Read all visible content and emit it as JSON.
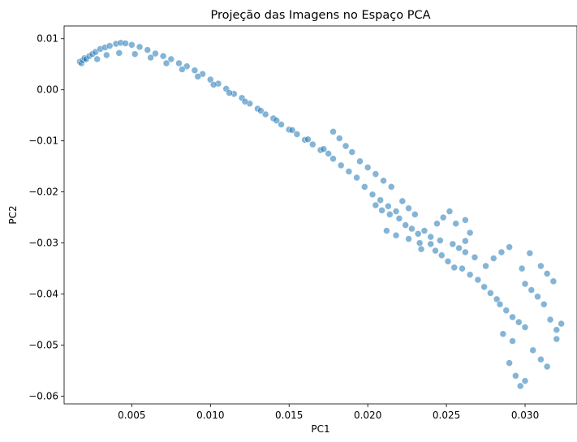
{
  "chart_data": {
    "type": "scatter",
    "title": "Projeção das Imagens no Espaço PCA",
    "xlabel": "PC1",
    "ylabel": "PC2",
    "xlim": [
      0.0007,
      0.0333
    ],
    "ylim": [
      -0.0615,
      0.0125
    ],
    "xticks": [
      0.005,
      0.01,
      0.015,
      0.02,
      0.025,
      0.03
    ],
    "xtick_labels": [
      "0.005",
      "0.010",
      "0.015",
      "0.020",
      "0.025",
      "0.030"
    ],
    "yticks": [
      0.01,
      0.0,
      -0.01,
      -0.02,
      -0.03,
      -0.04,
      -0.05,
      -0.06
    ],
    "ytick_labels": [
      "0.01",
      "0.00",
      "−0.01",
      "−0.02",
      "−0.03",
      "−0.04",
      "−0.05",
      "−0.06"
    ],
    "grid": false,
    "color": "#1f77b4",
    "points": [
      [
        0.0017,
        0.0055
      ],
      [
        0.0018,
        0.0052
      ],
      [
        0.0019,
        0.0058
      ],
      [
        0.002,
        0.0062
      ],
      [
        0.0021,
        0.006
      ],
      [
        0.0023,
        0.0066
      ],
      [
        0.0025,
        0.007
      ],
      [
        0.0027,
        0.0074
      ],
      [
        0.003,
        0.008
      ],
      [
        0.0033,
        0.0083
      ],
      [
        0.0036,
        0.0086
      ],
      [
        0.004,
        0.009
      ],
      [
        0.0043,
        0.0092
      ],
      [
        0.0046,
        0.0091
      ],
      [
        0.005,
        0.0088
      ],
      [
        0.0055,
        0.0084
      ],
      [
        0.006,
        0.0078
      ],
      [
        0.0065,
        0.0071
      ],
      [
        0.007,
        0.0066
      ],
      [
        0.0075,
        0.006
      ],
      [
        0.008,
        0.0052
      ],
      [
        0.0085,
        0.0046
      ],
      [
        0.009,
        0.0038
      ],
      [
        0.0095,
        0.0031
      ],
      [
        0.01,
        0.002
      ],
      [
        0.0105,
        0.0012
      ],
      [
        0.011,
        0.0002
      ],
      [
        0.0115,
        -0.0008
      ],
      [
        0.012,
        -0.0016
      ],
      [
        0.0125,
        -0.0027
      ],
      [
        0.013,
        -0.0037
      ],
      [
        0.0135,
        -0.0048
      ],
      [
        0.014,
        -0.0056
      ],
      [
        0.0145,
        -0.0068
      ],
      [
        0.015,
        -0.0078
      ],
      [
        0.0155,
        -0.0087
      ],
      [
        0.016,
        -0.0098
      ],
      [
        0.0165,
        -0.0107
      ],
      [
        0.017,
        -0.0118
      ],
      [
        0.0175,
        -0.0125
      ],
      [
        0.0028,
        0.006
      ],
      [
        0.0034,
        0.0068
      ],
      [
        0.0042,
        0.0072
      ],
      [
        0.0052,
        0.007
      ],
      [
        0.0062,
        0.0063
      ],
      [
        0.0072,
        0.0052
      ],
      [
        0.0082,
        0.004
      ],
      [
        0.0092,
        0.0026
      ],
      [
        0.0102,
        0.001
      ],
      [
        0.0112,
        -0.0006
      ],
      [
        0.0122,
        -0.0023
      ],
      [
        0.0132,
        -0.0041
      ],
      [
        0.0142,
        -0.006
      ],
      [
        0.0152,
        -0.0079
      ],
      [
        0.0162,
        -0.0097
      ],
      [
        0.0172,
        -0.0116
      ],
      [
        0.0178,
        -0.0135
      ],
      [
        0.0183,
        -0.0148
      ],
      [
        0.0188,
        -0.016
      ],
      [
        0.0193,
        -0.0172
      ],
      [
        0.0178,
        -0.0082
      ],
      [
        0.0182,
        -0.0095
      ],
      [
        0.0186,
        -0.011
      ],
      [
        0.019,
        -0.0122
      ],
      [
        0.0195,
        -0.014
      ],
      [
        0.02,
        -0.0152
      ],
      [
        0.0205,
        -0.0165
      ],
      [
        0.021,
        -0.0178
      ],
      [
        0.0215,
        -0.019
      ],
      [
        0.0198,
        -0.019
      ],
      [
        0.0203,
        -0.0205
      ],
      [
        0.0208,
        -0.0216
      ],
      [
        0.0213,
        -0.0228
      ],
      [
        0.0218,
        -0.0238
      ],
      [
        0.0222,
        -0.0218
      ],
      [
        0.0226,
        -0.0232
      ],
      [
        0.023,
        -0.0244
      ],
      [
        0.0224,
        -0.0265
      ],
      [
        0.0228,
        -0.0272
      ],
      [
        0.0232,
        -0.0282
      ],
      [
        0.0236,
        -0.0276
      ],
      [
        0.024,
        -0.0288
      ],
      [
        0.0244,
        -0.0262
      ],
      [
        0.0248,
        -0.025
      ],
      [
        0.0252,
        -0.0238
      ],
      [
        0.024,
        -0.0302
      ],
      [
        0.0243,
        -0.0315
      ],
      [
        0.0247,
        -0.0324
      ],
      [
        0.0251,
        -0.0336
      ],
      [
        0.0255,
        -0.0348
      ],
      [
        0.0258,
        -0.031
      ],
      [
        0.0262,
        -0.0296
      ],
      [
        0.0265,
        -0.028
      ],
      [
        0.026,
        -0.035
      ],
      [
        0.0265,
        -0.0362
      ],
      [
        0.027,
        -0.0372
      ],
      [
        0.0274,
        -0.0386
      ],
      [
        0.0278,
        -0.0398
      ],
      [
        0.0282,
        -0.041
      ],
      [
        0.0275,
        -0.0345
      ],
      [
        0.028,
        -0.033
      ],
      [
        0.0285,
        -0.0318
      ],
      [
        0.029,
        -0.0308
      ],
      [
        0.0284,
        -0.042
      ],
      [
        0.0288,
        -0.0432
      ],
      [
        0.0292,
        -0.0445
      ],
      [
        0.0296,
        -0.0455
      ],
      [
        0.03,
        -0.0465
      ],
      [
        0.03,
        -0.038
      ],
      [
        0.0304,
        -0.0392
      ],
      [
        0.0298,
        -0.035
      ],
      [
        0.031,
        -0.0345
      ],
      [
        0.0314,
        -0.036
      ],
      [
        0.0318,
        -0.0375
      ],
      [
        0.0303,
        -0.032
      ],
      [
        0.0308,
        -0.0405
      ],
      [
        0.0312,
        -0.042
      ],
      [
        0.0316,
        -0.045
      ],
      [
        0.032,
        -0.047
      ],
      [
        0.0323,
        -0.0458
      ],
      [
        0.029,
        -0.0535
      ],
      [
        0.0294,
        -0.056
      ],
      [
        0.0297,
        -0.058
      ],
      [
        0.03,
        -0.057
      ],
      [
        0.0305,
        -0.051
      ],
      [
        0.031,
        -0.0528
      ],
      [
        0.0314,
        -0.0542
      ],
      [
        0.0286,
        -0.0478
      ],
      [
        0.0292,
        -0.0492
      ],
      [
        0.032,
        -0.0488
      ],
      [
        0.0233,
        -0.03
      ],
      [
        0.022,
        -0.0252
      ],
      [
        0.0214,
        -0.0244
      ],
      [
        0.0209,
        -0.0236
      ],
      [
        0.0205,
        -0.0226
      ],
      [
        0.0212,
        -0.0276
      ],
      [
        0.0218,
        -0.0285
      ],
      [
        0.0226,
        -0.0292
      ],
      [
        0.0234,
        -0.0312
      ],
      [
        0.0246,
        -0.0295
      ],
      [
        0.0254,
        -0.0302
      ],
      [
        0.0262,
        -0.0318
      ],
      [
        0.0268,
        -0.0328
      ],
      [
        0.0256,
        -0.0262
      ],
      [
        0.0262,
        -0.0255
      ]
    ]
  }
}
